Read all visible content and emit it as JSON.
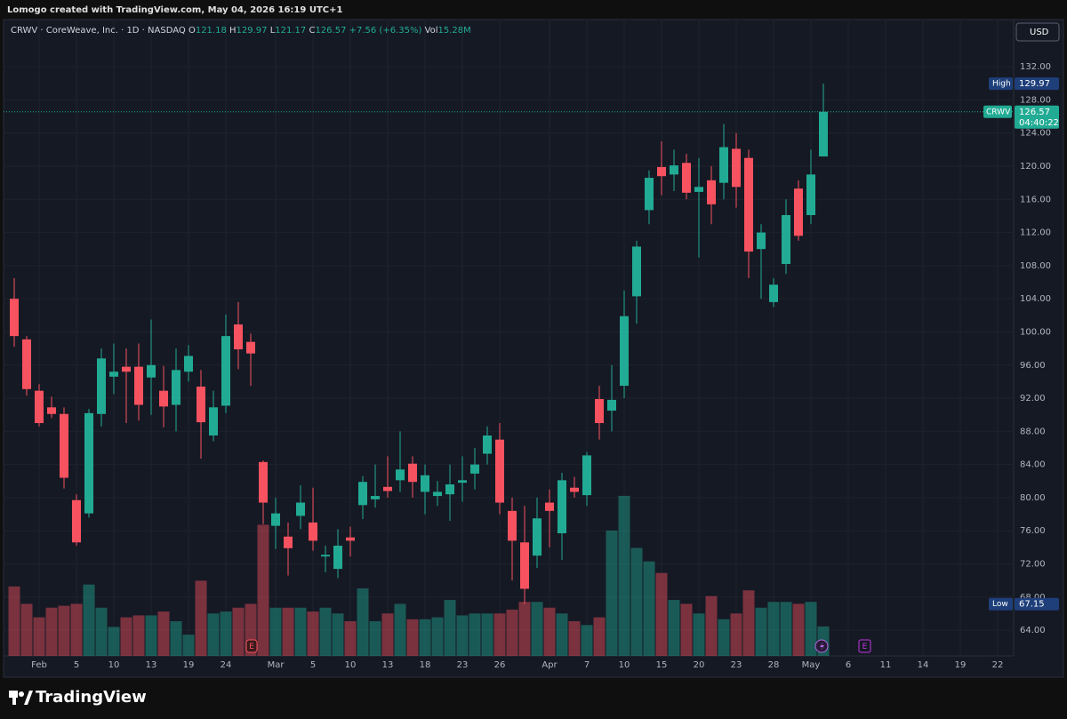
{
  "header": "Lomogo created with TradingView.com, May 04, 2026 16:19 UTC+1",
  "branding": "TradingView",
  "chart_data": {
    "type": "candlestick",
    "symbol": "CRWV · CoreWeave, Inc. · 1D · NASDAQ",
    "legend": [
      {
        "label": "O",
        "value": "121.18"
      },
      {
        "label": "H",
        "value": "129.97"
      },
      {
        "label": "L",
        "value": "121.17"
      },
      {
        "label": "C",
        "value": "126.57"
      }
    ],
    "change": "+7.56 (+6.35%)",
    "volume_label": "Vol",
    "volume_value": "15.28M",
    "currency": "USD",
    "earnings_marker": "E",
    "categories": [
      null,
      null,
      "Feb",
      null,
      null,
      "5",
      null,
      null,
      "10",
      null,
      null,
      "13",
      null,
      null,
      "19",
      null,
      null,
      "24",
      null,
      null,
      null,
      "Mar",
      null,
      null,
      "5",
      null,
      null,
      "10",
      null,
      null,
      "13",
      null,
      null,
      "18",
      null,
      null,
      "23",
      null,
      null,
      "26",
      null,
      null,
      null,
      "Apr",
      null,
      null,
      "7",
      null,
      null,
      "10",
      null,
      null,
      "15",
      null,
      null,
      "20",
      null,
      null,
      "23",
      null,
      null,
      "28",
      null,
      null,
      "May",
      null,
      null,
      "6",
      null,
      null,
      "11",
      null,
      null,
      "14",
      null,
      null,
      "19",
      null,
      null,
      "22"
    ],
    "open": [
      104.0,
      99.1,
      92.9,
      90.9,
      90.1,
      79.7,
      78.1,
      90.1,
      94.6,
      95.8,
      95.8,
      94.5,
      92.9,
      91.2,
      95.2,
      93.4,
      87.5,
      91.1,
      100.9,
      98.8,
      84.3,
      76.6,
      75.3,
      77.8,
      77.0,
      72.9,
      71.4,
      75.2,
      79.1,
      79.8,
      81.3,
      82.1,
      84.1,
      80.7,
      80.2,
      80.4,
      81.8,
      82.9,
      85.3,
      87.0,
      78.4,
      74.6,
      73.0,
      79.4,
      75.7,
      81.2,
      80.3,
      91.9,
      90.5,
      93.5,
      104.3,
      114.7,
      119.9,
      119.0,
      120.4,
      116.9,
      118.3,
      118.0,
      122.1,
      121.0,
      110.0,
      103.6,
      108.2,
      117.3,
      114.1,
      121.18,
      null,
      null,
      null,
      null,
      null,
      null,
      null,
      null,
      null,
      null,
      null,
      null,
      null,
      null
    ],
    "high": [
      106.5,
      99.5,
      93.7,
      92.2,
      90.9,
      80.4,
      90.7,
      98.0,
      98.6,
      98.0,
      98.6,
      101.5,
      95.9,
      98.0,
      98.4,
      95.4,
      92.9,
      102.1,
      103.6,
      99.8,
      84.5,
      80.0,
      77.0,
      81.5,
      81.2,
      74.2,
      76.2,
      76.5,
      82.6,
      84.0,
      85.0,
      88.0,
      85.0,
      84.0,
      82.0,
      84.0,
      85.0,
      86.0,
      88.6,
      89.0,
      80.0,
      79.0,
      80.0,
      81.0,
      83.0,
      82.5,
      85.5,
      93.5,
      96.0,
      105.0,
      111.0,
      119.5,
      123.0,
      122.0,
      121.5,
      121.0,
      120.0,
      125.1,
      124.0,
      122.0,
      113.0,
      106.5,
      116.0,
      118.3,
      122.0,
      129.97,
      null,
      null,
      null,
      null,
      null,
      null,
      null,
      null,
      null,
      null,
      null,
      null,
      null,
      null
    ],
    "low": [
      98.2,
      92.3,
      88.6,
      89.6,
      81.1,
      74.2,
      77.6,
      88.6,
      92.5,
      89.0,
      89.3,
      90.0,
      88.5,
      88.0,
      94.0,
      84.7,
      86.8,
      90.2,
      95.5,
      93.5,
      76.8,
      73.8,
      70.6,
      76.2,
      73.6,
      71.0,
      70.3,
      72.9,
      77.4,
      78.8,
      80.0,
      80.7,
      80.0,
      78.0,
      79.0,
      77.2,
      79.5,
      81.0,
      84.0,
      78.0,
      70.0,
      67.15,
      71.5,
      74.0,
      72.5,
      80.0,
      79.0,
      87.0,
      88.0,
      92.0,
      101.0,
      113.0,
      116.5,
      117.0,
      116.0,
      109.0,
      113.0,
      116.0,
      115.0,
      106.5,
      104.0,
      103.0,
      107.0,
      111.0,
      113.0,
      121.17,
      null,
      null,
      null,
      null,
      null,
      null,
      null,
      null,
      null,
      null,
      null,
      null,
      null,
      null
    ],
    "close": [
      99.5,
      93.1,
      89.0,
      90.1,
      82.4,
      74.6,
      90.2,
      96.8,
      95.2,
      95.2,
      91.2,
      96.0,
      91.0,
      95.4,
      97.1,
      89.1,
      90.9,
      99.5,
      97.9,
      97.4,
      79.4,
      78.1,
      73.9,
      79.4,
      74.8,
      73.1,
      74.2,
      74.8,
      81.9,
      80.2,
      80.8,
      83.4,
      81.9,
      82.7,
      80.7,
      81.6,
      82.1,
      84.0,
      87.5,
      79.4,
      74.8,
      69.0,
      77.5,
      78.4,
      82.1,
      80.7,
      85.1,
      89.0,
      91.8,
      101.9,
      110.3,
      118.6,
      118.8,
      120.1,
      116.8,
      117.5,
      115.4,
      122.3,
      117.5,
      109.7,
      112.0,
      105.7,
      114.1,
      111.6,
      119.0,
      126.57,
      null,
      null,
      null,
      null,
      null,
      null,
      null,
      null,
      null,
      null,
      null,
      null,
      null,
      null
    ],
    "volume": [
      36,
      27,
      20,
      25,
      26,
      27,
      37,
      25,
      15,
      20,
      21,
      21,
      23,
      18,
      11,
      39,
      22,
      23,
      25,
      27,
      68,
      25,
      25,
      25,
      23,
      25,
      22,
      18,
      35,
      18,
      22,
      27,
      19,
      19,
      20,
      29,
      21,
      22,
      22,
      22,
      24,
      28,
      28,
      25,
      22,
      18,
      16,
      20,
      65,
      83,
      56,
      49,
      43,
      29,
      27,
      22,
      31,
      19,
      22,
      34,
      25,
      28,
      28,
      27,
      28,
      15.28,
      null,
      null,
      null,
      null,
      null,
      null,
      null,
      null,
      null,
      null,
      null,
      null,
      null,
      null
    ],
    "up_color": "#22ab94",
    "down_color": "#f7525f",
    "ylim": [
      60.9,
      137.7
    ],
    "yticks": [
      {
        "value": 64,
        "label": "64.00"
      },
      {
        "value": 68,
        "label": "68.00"
      },
      {
        "value": 72,
        "label": "72.00"
      },
      {
        "value": 76,
        "label": "76.00"
      },
      {
        "value": 80,
        "label": "80.00"
      },
      {
        "value": 84,
        "label": "84.00"
      },
      {
        "value": 88,
        "label": "88.00"
      },
      {
        "value": 92,
        "label": "92.00"
      },
      {
        "value": 96,
        "label": "96.00"
      },
      {
        "value": 100,
        "label": "100.00"
      },
      {
        "value": 104,
        "label": "104.00"
      },
      {
        "value": 108,
        "label": "108.00"
      },
      {
        "value": 112,
        "label": "112.00"
      },
      {
        "value": 116,
        "label": "116.00"
      },
      {
        "value": 120,
        "label": "120.00"
      },
      {
        "value": 124,
        "label": "124.00"
      },
      {
        "value": 128,
        "label": "128.00"
      },
      {
        "value": 132,
        "label": "132.00"
      }
    ],
    "vlim": [
      0,
      100
    ],
    "grid": true,
    "price_labels": [
      {
        "name": "High",
        "value": 129.97
      },
      {
        "name": "CRWV",
        "value": 126.57,
        "countdown": "04:40:22"
      },
      {
        "name": "Low",
        "value": 67.15
      }
    ]
  }
}
